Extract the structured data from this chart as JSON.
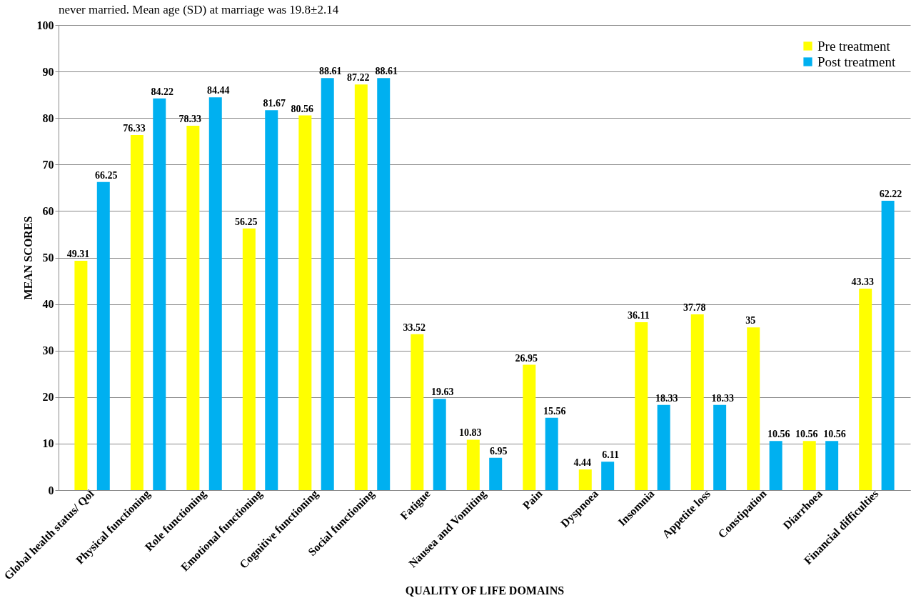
{
  "chart_data": {
    "type": "bar",
    "xlabel": "QUALITY OF LIFE DOMAINS",
    "ylabel": "MEAN SCORES",
    "annotations": [
      "never married. Mean age (SD) at marriage was 19.8±2.14"
    ],
    "categories": [
      "Global health status/ Qol",
      "Physical functioning",
      "Role functioning",
      "Emotional functioning",
      "Cognitive functioning",
      "Social functioning",
      "Fatigue",
      "Nausea and Vomiting",
      "Pain",
      "Dyspnoea",
      "Insomnia",
      "Appetite loss",
      "Constipation",
      "Diarrhoea",
      "Financial difficulties"
    ],
    "series": [
      {
        "name": "Pre treatment",
        "color": "#ffff00",
        "values": [
          49.31,
          76.33,
          78.33,
          56.25,
          80.56,
          87.22,
          33.52,
          10.83,
          26.95,
          4.44,
          36.11,
          37.78,
          35,
          10.56,
          43.33
        ]
      },
      {
        "name": "Post treatment",
        "color": "#00b0f0",
        "values": [
          66.25,
          84.22,
          84.44,
          81.67,
          88.61,
          88.61,
          19.63,
          6.95,
          15.56,
          6.11,
          18.33,
          18.33,
          10.56,
          10.56,
          62.22
        ]
      }
    ],
    "ylim": [
      0,
      100
    ],
    "yticks": [
      0,
      10,
      20,
      30,
      40,
      50,
      60,
      70,
      80,
      90,
      100
    ],
    "grid": "y",
    "legend": "top right",
    "data_labels": true
  }
}
